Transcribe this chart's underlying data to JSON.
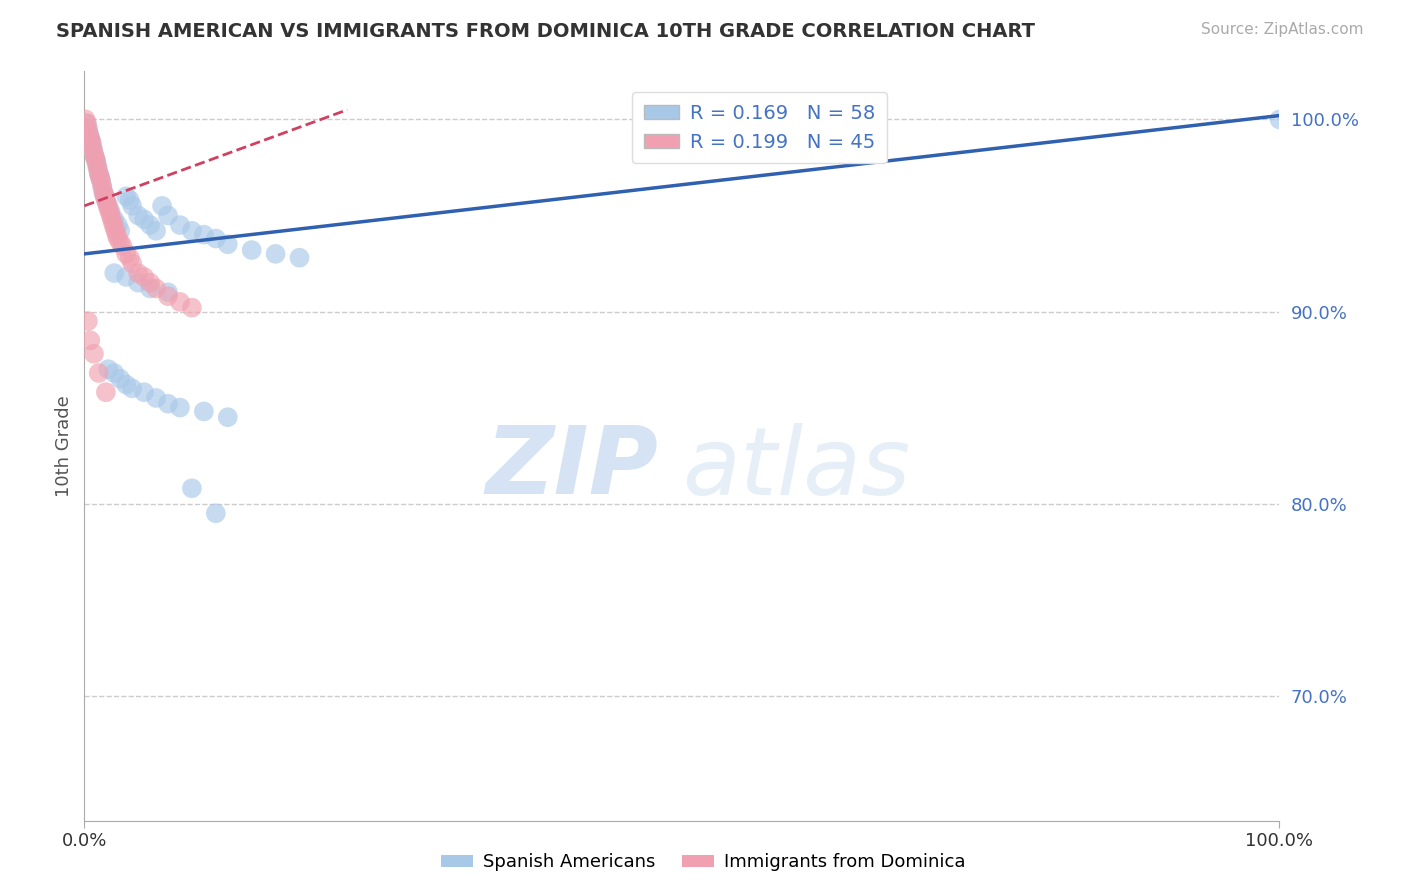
{
  "title": "SPANISH AMERICAN VS IMMIGRANTS FROM DOMINICA 10TH GRADE CORRELATION CHART",
  "source": "Source: ZipAtlas.com",
  "ylabel": "10th Grade",
  "xlim": [
    0.0,
    1.0
  ],
  "ylim": [
    0.635,
    1.025
  ],
  "blue_R": 0.169,
  "blue_N": 58,
  "pink_R": 0.199,
  "pink_N": 45,
  "blue_color": "#a8c8e8",
  "pink_color": "#f0a0b0",
  "trend_blue_color": "#3060b0",
  "trend_pink_color": "#d04060",
  "blue_line_x": [
    0.0,
    1.0
  ],
  "blue_line_y": [
    0.93,
    1.002
  ],
  "pink_line_x": [
    0.0,
    0.22
  ],
  "pink_line_y": [
    0.955,
    1.005
  ],
  "blue_points_x": [
    0.002,
    0.003,
    0.004,
    0.005,
    0.006,
    0.007,
    0.008,
    0.009,
    0.01,
    0.011,
    0.012,
    0.013,
    0.014,
    0.015,
    0.016,
    0.017,
    0.018,
    0.02,
    0.022,
    0.025,
    0.028,
    0.03,
    0.035,
    0.038,
    0.04,
    0.045,
    0.05,
    0.055,
    0.06,
    0.065,
    0.07,
    0.08,
    0.09,
    0.1,
    0.11,
    0.12,
    0.14,
    0.16,
    0.18,
    0.02,
    0.025,
    0.03,
    0.035,
    0.04,
    0.05,
    0.06,
    0.07,
    0.08,
    0.1,
    0.12,
    0.025,
    0.035,
    0.045,
    0.055,
    0.07,
    0.09,
    0.11,
    1.0
  ],
  "blue_points_y": [
    0.998,
    0.995,
    0.992,
    0.99,
    0.988,
    0.985,
    0.982,
    0.98,
    0.978,
    0.975,
    0.972,
    0.97,
    0.968,
    0.965,
    0.962,
    0.96,
    0.958,
    0.955,
    0.952,
    0.948,
    0.945,
    0.942,
    0.96,
    0.958,
    0.955,
    0.95,
    0.948,
    0.945,
    0.942,
    0.955,
    0.95,
    0.945,
    0.942,
    0.94,
    0.938,
    0.935,
    0.932,
    0.93,
    0.928,
    0.87,
    0.868,
    0.865,
    0.862,
    0.86,
    0.858,
    0.855,
    0.852,
    0.85,
    0.848,
    0.845,
    0.92,
    0.918,
    0.915,
    0.912,
    0.91,
    0.808,
    0.795,
    1.0
  ],
  "pink_points_x": [
    0.001,
    0.002,
    0.003,
    0.004,
    0.005,
    0.006,
    0.007,
    0.008,
    0.009,
    0.01,
    0.011,
    0.012,
    0.013,
    0.014,
    0.015,
    0.016,
    0.017,
    0.018,
    0.019,
    0.02,
    0.021,
    0.022,
    0.023,
    0.024,
    0.025,
    0.026,
    0.027,
    0.028,
    0.03,
    0.032,
    0.035,
    0.038,
    0.04,
    0.045,
    0.05,
    0.055,
    0.06,
    0.07,
    0.08,
    0.09,
    0.003,
    0.005,
    0.008,
    0.012,
    0.018
  ],
  "pink_points_y": [
    1.0,
    0.998,
    0.995,
    0.992,
    0.99,
    0.988,
    0.985,
    0.982,
    0.98,
    0.978,
    0.975,
    0.972,
    0.97,
    0.968,
    0.965,
    0.962,
    0.96,
    0.958,
    0.956,
    0.954,
    0.952,
    0.95,
    0.948,
    0.946,
    0.944,
    0.942,
    0.94,
    0.938,
    0.936,
    0.934,
    0.93,
    0.928,
    0.925,
    0.92,
    0.918,
    0.915,
    0.912,
    0.908,
    0.905,
    0.902,
    0.895,
    0.885,
    0.878,
    0.868,
    0.858
  ],
  "ytick_values": [
    0.7,
    0.8,
    0.9,
    1.0
  ],
  "legend_label1": "Spanish Americans",
  "legend_label2": "Immigrants from Dominica",
  "grid_color": "#cccccc",
  "background_color": "#ffffff",
  "watermark_zip": "ZIP",
  "watermark_atlas": "atlas"
}
